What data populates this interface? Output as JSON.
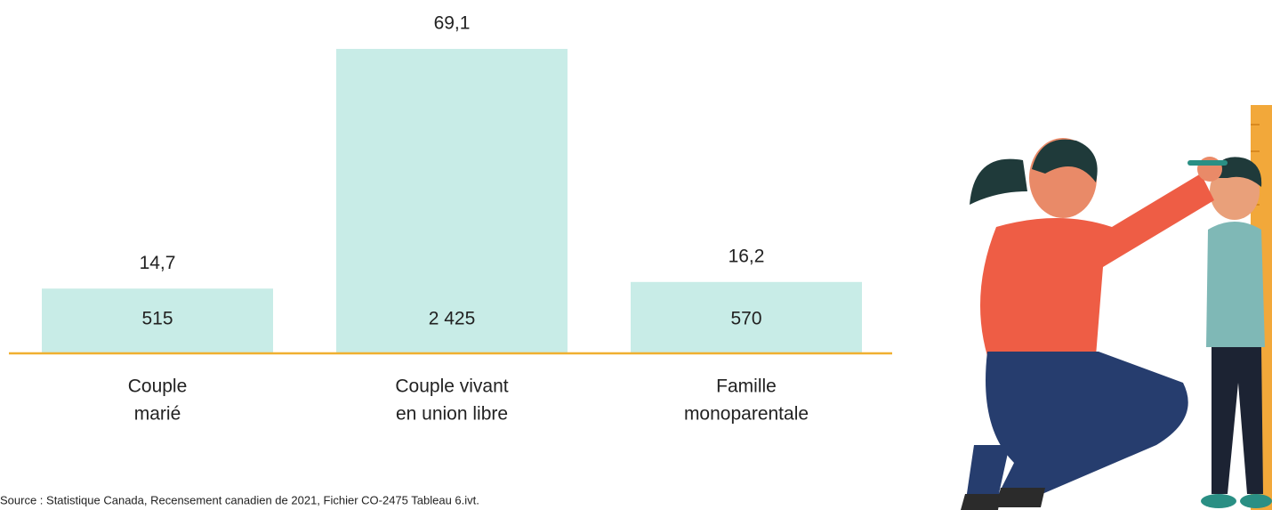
{
  "chart_data": {
    "type": "bar",
    "categories": [
      [
        "Couple",
        "marié"
      ],
      [
        "Couple vivant",
        "en union libre"
      ],
      [
        "Famille",
        "monoparentale"
      ]
    ],
    "values": [
      14.7,
      69.1,
      16.2
    ],
    "value_labels": [
      "14,7",
      "69,1",
      "16,2"
    ],
    "counts": [
      515,
      2425,
      570
    ],
    "count_labels": [
      "515",
      "2 425",
      "570"
    ],
    "color": "#c8ece7",
    "baseline_color": "#f0b030",
    "source": "Source : Statistique Canada, Recensement canadien de 2021, Fichier CO-2475 Tableau 6.ivt."
  }
}
